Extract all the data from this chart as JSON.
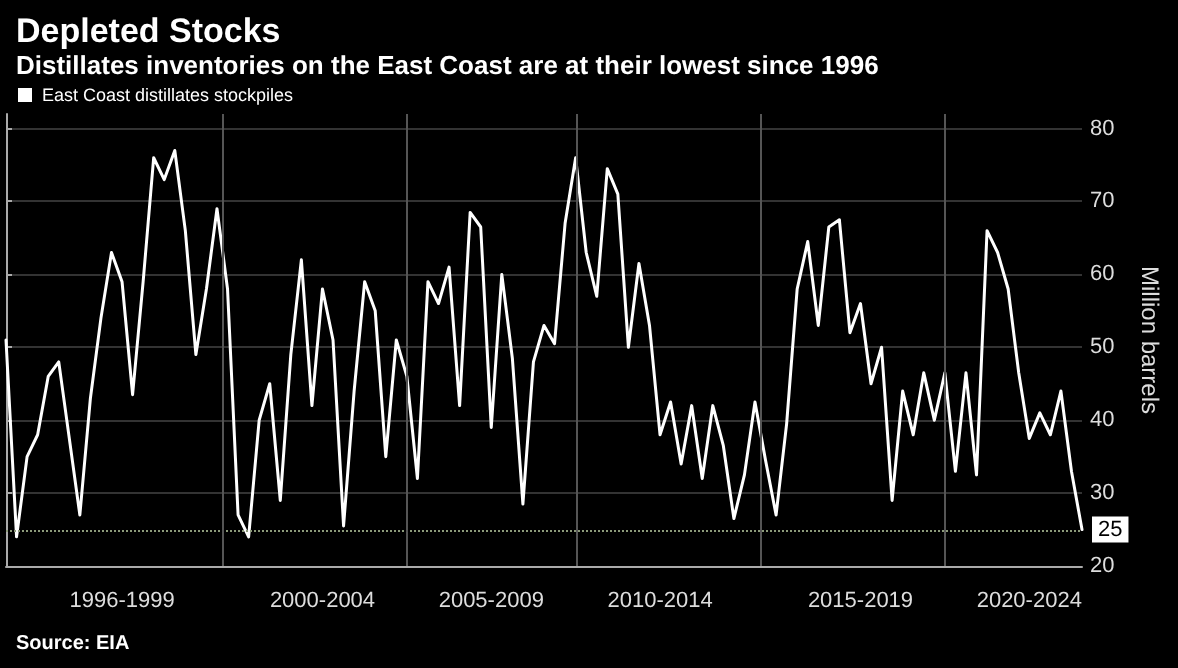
{
  "chart_data": {
    "type": "line",
    "title": "Depleted Stocks",
    "subtitle": "Distillates inventories on the East Coast are at their lowest since 1996",
    "ylabel": "Million barrels",
    "annotations": [
      "Source: EIA"
    ],
    "categories": [
      null,
      null,
      null,
      null,
      null,
      null,
      null,
      null,
      null,
      null,
      null,
      "1996-1999",
      null,
      null,
      null,
      null,
      null,
      null,
      null,
      null,
      null,
      null,
      null,
      null,
      null,
      null,
      null,
      null,
      null,
      null,
      "2000-2004",
      null,
      null,
      null,
      null,
      null,
      null,
      null,
      null,
      null,
      null,
      null,
      null,
      null,
      null,
      null,
      "2005-2009",
      null,
      null,
      null,
      null,
      null,
      null,
      null,
      null,
      null,
      null,
      null,
      null,
      null,
      null,
      null,
      "2010-2014",
      null,
      null,
      null,
      null,
      null,
      null,
      null,
      null,
      null,
      null,
      null,
      null,
      null,
      null,
      null,
      null,
      null,
      null,
      "2015-2019",
      null,
      null,
      null,
      null,
      null,
      null,
      null,
      null,
      null,
      null,
      null,
      null,
      null,
      null,
      null,
      "2020-2024",
      null,
      null,
      null,
      null,
      null
    ],
    "series": [
      {
        "name": "East Coast distillates stockpiles",
        "color": "#ffffff",
        "values": [
          51,
          24,
          35,
          38,
          46,
          48,
          37.5,
          27,
          43,
          54,
          63,
          59,
          43.5,
          59,
          76,
          73,
          77,
          66,
          49,
          58,
          69,
          58,
          27,
          24,
          40,
          45,
          29,
          49,
          62,
          42,
          58,
          51,
          25.5,
          44,
          59,
          55,
          35,
          51,
          46,
          32,
          59,
          56,
          61,
          42,
          68.5,
          66.5,
          39,
          60,
          48.5,
          28.5,
          48,
          53,
          50.5,
          67,
          76,
          63,
          57,
          74.5,
          71,
          50,
          61.5,
          53,
          38,
          42.5,
          34,
          42,
          32,
          42,
          36.5,
          26.5,
          32.5,
          42.5,
          34.5,
          27,
          39.5,
          58,
          64.5,
          53,
          66.5,
          67.5,
          52,
          56,
          45,
          50,
          29,
          44,
          38,
          46.5,
          40,
          46.5,
          33,
          46.5,
          32.5,
          66,
          63,
          58,
          46.5,
          37.5,
          41,
          38,
          44,
          33,
          25
        ]
      }
    ],
    "ylim": [
      20,
      82
    ],
    "yticks": [
      20,
      30,
      40,
      50,
      60,
      70,
      80
    ],
    "ref_lines": [
      {
        "axis": "y",
        "value": 25,
        "label": "25",
        "color": "#8c9a7a",
        "line_style": "dotted"
      }
    ],
    "grid": true,
    "legend": "top left",
    "marker": "none",
    "line_style": "solid"
  }
}
